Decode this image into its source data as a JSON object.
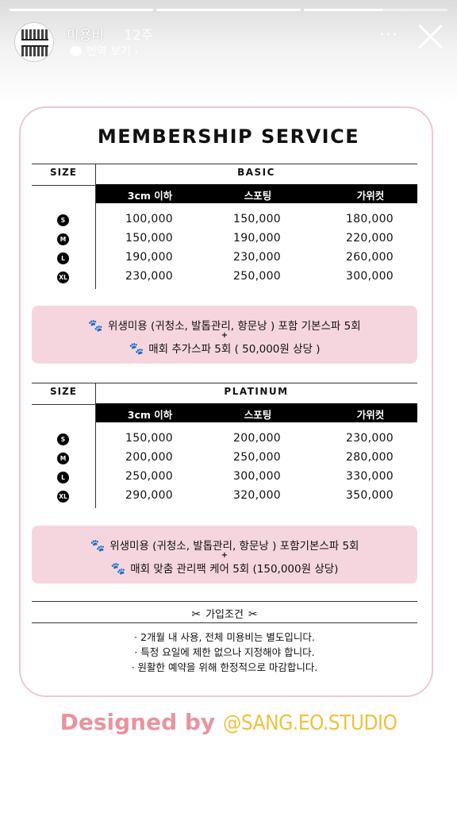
{
  "story": {
    "progress": [
      1,
      1,
      0.55
    ],
    "username": "미용비",
    "time": "12주",
    "translate_label": "번역 보기 ›",
    "more_icon": "more-horizontal-icon",
    "close_icon": "close-icon"
  },
  "flyer": {
    "title": "MEMBERSHIP SERVICE",
    "size_label": "SIZE",
    "columns": [
      "3cm 이하",
      "스포팅",
      "가위컷"
    ],
    "basic": {
      "tier": "BASIC",
      "rows": [
        {
          "size": "S",
          "values": [
            "100,000",
            "150,000",
            "180,000"
          ]
        },
        {
          "size": "M",
          "values": [
            "150,000",
            "190,000",
            "220,000"
          ]
        },
        {
          "size": "L",
          "values": [
            "190,000",
            "230,000",
            "260,000"
          ]
        },
        {
          "size": "XL",
          "values": [
            "230,000",
            "250,000",
            "300,000"
          ]
        }
      ],
      "benefit_line1": "위생미용 (귀청소, 발톱관리, 항문낭 ) 포함 기본스파 5회",
      "plus": "+",
      "benefit_line2": "매회 추가스파 5회 ( 50,000원 상당 )"
    },
    "platinum": {
      "tier": "PLATINUM",
      "rows": [
        {
          "size": "S",
          "values": [
            "150,000",
            "200,000",
            "230,000"
          ]
        },
        {
          "size": "M",
          "values": [
            "200,000",
            "250,000",
            "280,000"
          ]
        },
        {
          "size": "L",
          "values": [
            "250,000",
            "300,000",
            "330,000"
          ]
        },
        {
          "size": "XL",
          "values": [
            "290,000",
            "320,000",
            "350,000"
          ]
        }
      ],
      "benefit_line1": "위생미용 (귀청소, 발톱관리, 항문낭 ) 포함기본스파 5회",
      "plus": "+",
      "benefit_line2": "매회 맞춤 관리팩 케어 5회 (150,000원 상당)"
    },
    "conditions": {
      "heading": "가입조건",
      "items": [
        "· 2개월 내 사용, 전체 미용비는 별도입니다.",
        "· 특정 요일에 제한 없으나 지정해야 합니다.",
        "· 원활한 예약을 위해 한정적으로 마감합니다."
      ]
    },
    "designed_by": "Designed by",
    "handle": "@SANG.EO.STUDIO",
    "colors": {
      "accent_pink": "#f6d6de",
      "border_pink": "#f0c6d0",
      "designed_pink": "#e8949f",
      "handle_yellow": "#f0c040"
    }
  }
}
